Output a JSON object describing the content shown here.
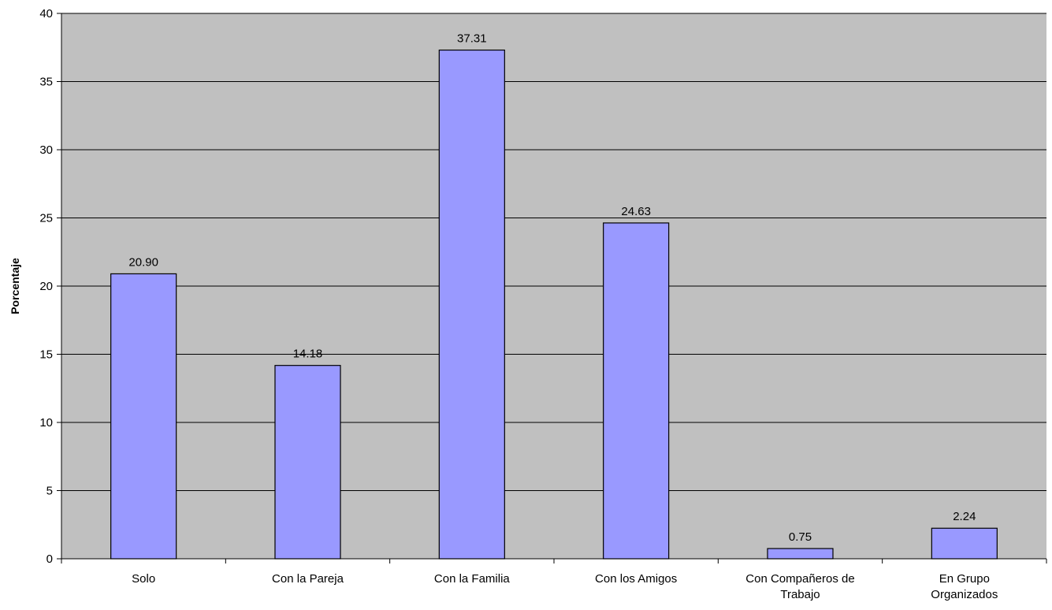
{
  "chart_data": {
    "type": "bar",
    "title": "",
    "xlabel": "",
    "ylabel": "Porcentaje",
    "categories": [
      [
        "Solo"
      ],
      [
        "Con la Pareja"
      ],
      [
        "Con la Familia"
      ],
      [
        "Con los Amigos"
      ],
      [
        "Con Compañeros de",
        "Trabajo"
      ],
      [
        "En Grupo",
        "Organizados"
      ]
    ],
    "values": [
      20.9,
      14.18,
      37.31,
      24.63,
      0.75,
      2.24
    ],
    "value_labels": [
      "20.90",
      "14.18",
      "37.31",
      "24.63",
      "0.75",
      "2.24"
    ],
    "ylim": [
      0,
      40
    ],
    "yticks": [
      0,
      5,
      10,
      15,
      20,
      25,
      30,
      35,
      40
    ],
    "grid": true,
    "legend": "none",
    "colors": {
      "bar_fill": "#9999ff",
      "bar_stroke": "#000000",
      "plot_background": "#c0c0c0",
      "gridline": "#000000"
    }
  }
}
